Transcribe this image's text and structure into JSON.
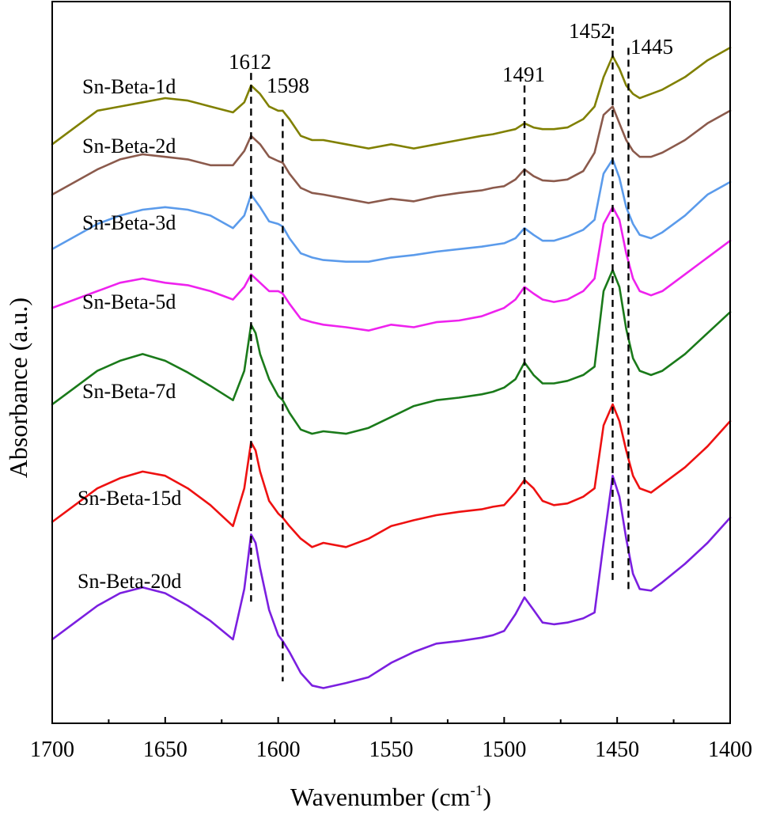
{
  "chart_data": {
    "type": "line",
    "title": "",
    "xlabel": "Wavenumber (cm",
    "xlabel_sup": "-1",
    "xlabel_close": ")",
    "ylabel": "Absorbance (a.u.)",
    "xlim": [
      1700,
      1400
    ],
    "ylim": [
      0,
      8.6
    ],
    "x_ticks": [
      1700,
      1650,
      1600,
      1550,
      1500,
      1450,
      1400
    ],
    "x_tick_labels": [
      "1700",
      "1650",
      "1600",
      "1550",
      "1500",
      "1450",
      "1400"
    ],
    "peaks": [
      {
        "position": 1612,
        "label": "1612",
        "y_top": 7.75,
        "y_bottom": 1.45
      },
      {
        "position": 1598,
        "label": "1598",
        "y_top": 7.2,
        "y_bottom": 0.5
      },
      {
        "position": 1491,
        "label": "1491",
        "y_top": 7.6,
        "y_bottom": 1.55
      },
      {
        "position": 1452,
        "label": "1452",
        "y_top": 8.3,
        "y_bottom": 1.7
      },
      {
        "position": 1445,
        "label": "1445",
        "y_top": 8.05,
        "y_bottom": 1.6
      }
    ],
    "series": [
      {
        "name": "Sn-Beta-1d",
        "color": "#808000",
        "x": [
          1700,
          1690,
          1680,
          1670,
          1660,
          1650,
          1640,
          1630,
          1620,
          1615,
          1612,
          1608,
          1604,
          1600,
          1598,
          1595,
          1590,
          1585,
          1580,
          1570,
          1560,
          1550,
          1540,
          1530,
          1520,
          1510,
          1505,
          1500,
          1495,
          1491,
          1487,
          1483,
          1478,
          1472,
          1465,
          1460,
          1456,
          1452,
          1449,
          1446,
          1443,
          1440,
          1435,
          1430,
          1420,
          1410,
          1400
        ],
        "y": [
          6.9,
          7.1,
          7.3,
          7.35,
          7.4,
          7.45,
          7.42,
          7.35,
          7.28,
          7.4,
          7.6,
          7.5,
          7.35,
          7.3,
          7.3,
          7.2,
          7.0,
          6.95,
          6.95,
          6.9,
          6.85,
          6.9,
          6.85,
          6.9,
          6.95,
          7.0,
          7.02,
          7.05,
          7.08,
          7.15,
          7.1,
          7.08,
          7.08,
          7.1,
          7.2,
          7.35,
          7.7,
          7.95,
          7.8,
          7.6,
          7.5,
          7.45,
          7.5,
          7.55,
          7.7,
          7.9,
          8.05
        ]
      },
      {
        "name": "Sn-Beta-2d",
        "color": "#8B5A4C",
        "x": [
          1700,
          1690,
          1680,
          1670,
          1660,
          1650,
          1640,
          1630,
          1620,
          1615,
          1612,
          1608,
          1604,
          1600,
          1598,
          1595,
          1590,
          1585,
          1580,
          1570,
          1560,
          1550,
          1540,
          1530,
          1520,
          1510,
          1505,
          1500,
          1495,
          1491,
          1487,
          1483,
          1478,
          1472,
          1465,
          1460,
          1456,
          1452,
          1449,
          1446,
          1443,
          1440,
          1435,
          1430,
          1420,
          1410,
          1400
        ],
        "y": [
          6.3,
          6.45,
          6.6,
          6.72,
          6.78,
          6.75,
          6.72,
          6.65,
          6.65,
          6.82,
          7.0,
          6.9,
          6.75,
          6.7,
          6.68,
          6.55,
          6.38,
          6.32,
          6.3,
          6.25,
          6.2,
          6.25,
          6.22,
          6.28,
          6.32,
          6.35,
          6.38,
          6.4,
          6.48,
          6.6,
          6.52,
          6.47,
          6.46,
          6.48,
          6.58,
          6.8,
          7.25,
          7.35,
          7.15,
          6.95,
          6.82,
          6.75,
          6.75,
          6.8,
          6.95,
          7.15,
          7.3
        ]
      },
      {
        "name": "Sn-Beta-3d",
        "color": "#5B9BEB",
        "x": [
          1700,
          1690,
          1680,
          1670,
          1660,
          1650,
          1640,
          1630,
          1620,
          1615,
          1612,
          1608,
          1604,
          1600,
          1598,
          1595,
          1590,
          1585,
          1580,
          1570,
          1560,
          1550,
          1540,
          1530,
          1520,
          1510,
          1505,
          1500,
          1495,
          1491,
          1487,
          1483,
          1478,
          1472,
          1465,
          1460,
          1456,
          1452,
          1449,
          1446,
          1443,
          1440,
          1435,
          1430,
          1420,
          1410,
          1400
        ],
        "y": [
          5.65,
          5.8,
          5.95,
          6.05,
          6.12,
          6.15,
          6.12,
          6.05,
          5.9,
          6.05,
          6.3,
          6.15,
          5.98,
          5.95,
          5.92,
          5.78,
          5.6,
          5.55,
          5.52,
          5.5,
          5.5,
          5.55,
          5.58,
          5.62,
          5.65,
          5.68,
          5.7,
          5.72,
          5.78,
          5.9,
          5.82,
          5.75,
          5.75,
          5.8,
          5.88,
          6.0,
          6.55,
          6.72,
          6.5,
          6.15,
          5.95,
          5.82,
          5.78,
          5.85,
          6.05,
          6.3,
          6.45
        ]
      },
      {
        "name": "Sn-Beta-5d",
        "color": "#EE22EE",
        "x": [
          1700,
          1690,
          1680,
          1670,
          1660,
          1650,
          1640,
          1630,
          1620,
          1615,
          1612,
          1608,
          1604,
          1600,
          1598,
          1595,
          1590,
          1585,
          1580,
          1570,
          1560,
          1550,
          1540,
          1530,
          1520,
          1510,
          1505,
          1500,
          1495,
          1491,
          1487,
          1483,
          1478,
          1472,
          1465,
          1460,
          1456,
          1452,
          1449,
          1446,
          1443,
          1440,
          1435,
          1430,
          1420,
          1410,
          1400
        ],
        "y": [
          4.95,
          5.05,
          5.15,
          5.25,
          5.3,
          5.25,
          5.22,
          5.15,
          5.05,
          5.2,
          5.35,
          5.25,
          5.15,
          5.15,
          5.12,
          5.0,
          4.82,
          4.78,
          4.75,
          4.72,
          4.68,
          4.75,
          4.72,
          4.78,
          4.8,
          4.85,
          4.9,
          4.95,
          5.05,
          5.2,
          5.12,
          5.05,
          5.02,
          5.05,
          5.15,
          5.3,
          5.95,
          6.15,
          6.0,
          5.6,
          5.3,
          5.15,
          5.1,
          5.15,
          5.35,
          5.55,
          5.75
        ]
      },
      {
        "name": "Sn-Beta-7d",
        "color": "#1A7A1A",
        "x": [
          1700,
          1690,
          1680,
          1670,
          1660,
          1650,
          1640,
          1630,
          1620,
          1615,
          1612,
          1610,
          1608,
          1604,
          1600,
          1598,
          1595,
          1590,
          1585,
          1580,
          1570,
          1560,
          1550,
          1540,
          1530,
          1520,
          1510,
          1505,
          1500,
          1495,
          1491,
          1487,
          1483,
          1478,
          1472,
          1465,
          1460,
          1456,
          1452,
          1449,
          1446,
          1443,
          1440,
          1435,
          1430,
          1420,
          1410,
          1400
        ],
        "y": [
          3.8,
          4.0,
          4.2,
          4.32,
          4.4,
          4.32,
          4.18,
          4.02,
          3.85,
          4.2,
          4.75,
          4.65,
          4.4,
          4.1,
          3.9,
          3.85,
          3.7,
          3.5,
          3.45,
          3.48,
          3.45,
          3.52,
          3.65,
          3.78,
          3.85,
          3.88,
          3.92,
          3.95,
          4.0,
          4.1,
          4.3,
          4.15,
          4.05,
          4.05,
          4.08,
          4.15,
          4.25,
          5.15,
          5.4,
          5.2,
          4.7,
          4.35,
          4.2,
          4.15,
          4.2,
          4.4,
          4.65,
          4.9
        ]
      },
      {
        "name": "Sn-Beta-15d",
        "color": "#EE1111",
        "x": [
          1700,
          1690,
          1680,
          1670,
          1660,
          1650,
          1640,
          1630,
          1620,
          1615,
          1612,
          1610,
          1608,
          1604,
          1600,
          1598,
          1595,
          1590,
          1585,
          1580,
          1570,
          1560,
          1550,
          1540,
          1530,
          1520,
          1510,
          1505,
          1500,
          1495,
          1491,
          1487,
          1483,
          1478,
          1472,
          1465,
          1460,
          1456,
          1452,
          1449,
          1446,
          1443,
          1440,
          1435,
          1430,
          1420,
          1410,
          1400
        ],
        "y": [
          2.4,
          2.6,
          2.8,
          2.92,
          3.0,
          2.95,
          2.8,
          2.6,
          2.35,
          2.8,
          3.35,
          3.25,
          3.0,
          2.65,
          2.5,
          2.45,
          2.35,
          2.2,
          2.1,
          2.15,
          2.1,
          2.2,
          2.35,
          2.42,
          2.48,
          2.52,
          2.55,
          2.58,
          2.6,
          2.75,
          2.9,
          2.8,
          2.65,
          2.6,
          2.62,
          2.7,
          2.8,
          3.55,
          3.8,
          3.6,
          3.25,
          2.95,
          2.8,
          2.75,
          2.85,
          3.05,
          3.3,
          3.6
        ]
      },
      {
        "name": "Sn-Beta-20d",
        "color": "#7B1FE0",
        "x": [
          1700,
          1690,
          1680,
          1670,
          1660,
          1650,
          1640,
          1630,
          1620,
          1615,
          1612,
          1610,
          1608,
          1604,
          1600,
          1598,
          1595,
          1590,
          1585,
          1580,
          1570,
          1560,
          1550,
          1540,
          1530,
          1520,
          1510,
          1505,
          1500,
          1495,
          1491,
          1487,
          1483,
          1478,
          1472,
          1465,
          1460,
          1456,
          1452,
          1449,
          1446,
          1443,
          1440,
          1435,
          1430,
          1420,
          1410,
          1400
        ],
        "y": [
          1.0,
          1.2,
          1.4,
          1.55,
          1.62,
          1.55,
          1.4,
          1.22,
          1.0,
          1.6,
          2.25,
          2.15,
          1.85,
          1.35,
          1.05,
          0.98,
          0.85,
          0.6,
          0.45,
          0.42,
          0.48,
          0.55,
          0.72,
          0.85,
          0.95,
          0.98,
          1.02,
          1.05,
          1.1,
          1.3,
          1.5,
          1.35,
          1.2,
          1.18,
          1.2,
          1.25,
          1.32,
          2.15,
          2.95,
          2.7,
          2.2,
          1.78,
          1.6,
          1.58,
          1.68,
          1.9,
          2.15,
          2.45
        ]
      }
    ]
  }
}
